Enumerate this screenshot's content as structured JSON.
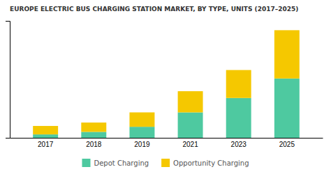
{
  "chart_data": {
    "type": "bar",
    "stacked": true,
    "title": "EUROPE ELECTRIC BUS CHARGING STATION MARKET, BY TYPE, UNITS (2017–2025)",
    "categories": [
      "2017",
      "2018",
      "2019",
      "2021",
      "2023",
      "2025"
    ],
    "series": [
      {
        "name": "Depot Charging",
        "color": "#4ec9a0",
        "values": [
          0.04,
          0.07,
          0.13,
          0.3,
          0.47,
          0.7
        ]
      },
      {
        "name": "Opportunity Charging",
        "color": "#f5c800",
        "values": [
          0.1,
          0.11,
          0.17,
          0.25,
          0.33,
          0.57
        ]
      }
    ],
    "ylim": [
      0,
      1.38
    ],
    "yticks": [],
    "grid": false,
    "tick_labels": "x",
    "legend": "bottom"
  }
}
